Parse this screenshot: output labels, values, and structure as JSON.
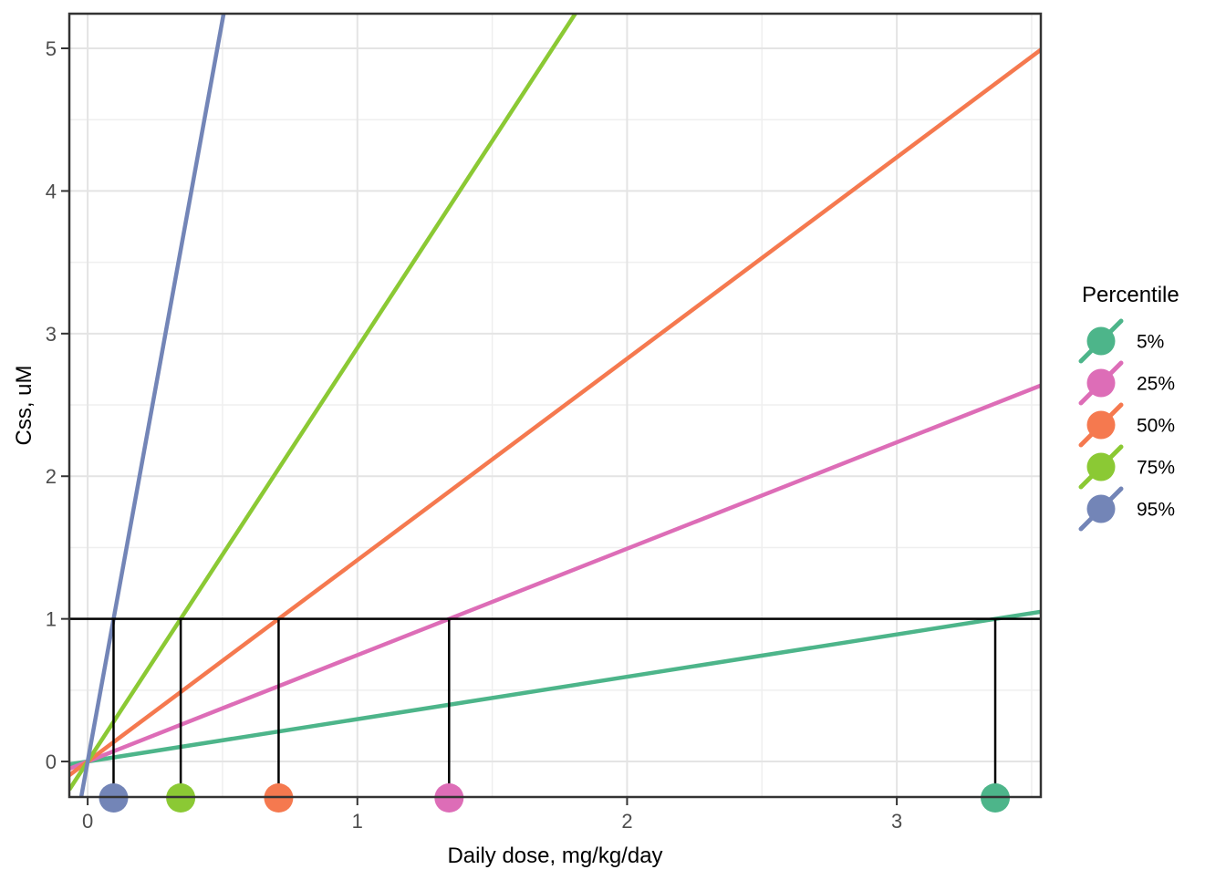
{
  "chart_data": {
    "type": "line",
    "xlabel": "Daily dose, mg/kg/day",
    "ylabel": "Css, uM",
    "xlim": [
      -0.068,
      3.534
    ],
    "ylim": [
      -0.249,
      5.243
    ],
    "x_ticks": {
      "major": [
        0,
        1,
        2,
        3
      ],
      "minor": [
        0.5,
        1.5,
        2.5,
        3.5
      ],
      "labels": [
        "0",
        "1",
        "2",
        "3"
      ]
    },
    "y_ticks": {
      "major": [
        0,
        1,
        2,
        3,
        4,
        5
      ],
      "minor": [
        0.5,
        1.5,
        2.5,
        3.5,
        4.5
      ],
      "labels": [
        "0",
        "1",
        "2",
        "3",
        "4",
        "5"
      ]
    },
    "grid": {
      "major_color": "#e4e4e4",
      "minor_color": "#efefef",
      "background": "#ffffff"
    },
    "panel_border_color": "#333333",
    "tick_label_color": "#4d4d4d",
    "legend": {
      "title": "Percentile",
      "position": "right"
    },
    "threshold": {
      "css_value": 1,
      "line_color": "#000000"
    },
    "series": [
      {
        "name": "5%",
        "color": "#4DB58A",
        "slope": 0.297,
        "dose_at_css1": 3.365
      },
      {
        "name": "25%",
        "color": "#DD6DB7",
        "slope": 0.746,
        "dose_at_css1": 1.34
      },
      {
        "name": "50%",
        "color": "#F5794F",
        "slope": 1.412,
        "dose_at_css1": 0.708
      },
      {
        "name": "75%",
        "color": "#8BC934",
        "slope": 2.9,
        "dose_at_css1": 0.345
      },
      {
        "name": "95%",
        "color": "#7385B7",
        "slope": 10.4,
        "dose_at_css1": 0.096
      }
    ]
  }
}
